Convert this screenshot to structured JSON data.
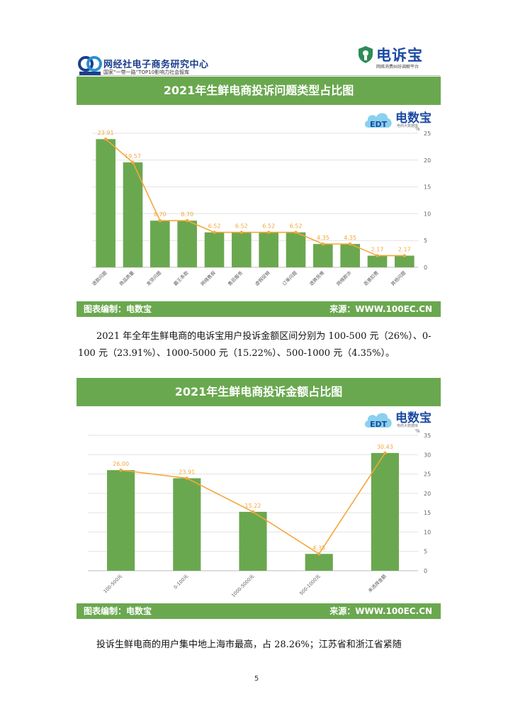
{
  "header": {
    "left_logo_text": "网经社电子商务研究中心",
    "left_logo_sub": "国家“一带一路”TOP10影响力社会智库",
    "left_logo_abbr": "EC",
    "left_logo_abbr_sub": "EORIC",
    "right_logo_text": "电诉宝",
    "right_logo_sub": "网络消费纠纷调解平台"
  },
  "watermark": {
    "text": "电数宝",
    "sub": "电商大数据库",
    "badge": "EDT"
  },
  "chart1": {
    "title": "2021年生鲜电商投诉问题类型占比图",
    "footer_left": "图表编制：电数宝",
    "footer_right": "来源：WWW.100EC.CN"
  },
  "chart2": {
    "title": "2021年生鲜电商投诉金额占比图",
    "footer_left": "图表编制：电数宝",
    "footer_right": "来源：WWW.100EC.CN"
  },
  "paragraph1": "2021 年全年生鲜电商的电诉宝用户投诉金额区间分别为 100-500 元（26%）、0-100 元（23.91%）、1000-5000 元（15.22%）、500-1000 元（4.35%）。",
  "paragraph2": "投诉生鲜电商的用户集中地上海市最高，占 28.26%；江苏省和浙江省紧随",
  "page_number": "5",
  "colors": {
    "green": "#6aa84f",
    "orange": "#f3a73a",
    "blue": "#1c4aa3"
  },
  "chart_data": [
    {
      "type": "bar",
      "categories": [
        "退款问题",
        "商品质量",
        "发货问题",
        "霸王条款",
        "网络售假",
        "售后服务",
        "虚假促销",
        "订单问题",
        "退换货难",
        "网络欺诈",
        "恶意扣费",
        "其他问题"
      ],
      "values": [
        23.91,
        19.57,
        8.7,
        8.7,
        6.52,
        6.52,
        6.52,
        6.52,
        4.35,
        4.35,
        2.17,
        2.17
      ],
      "data_labels": [
        "23.91",
        "19.57",
        "8.70",
        "8.70",
        "6.52",
        "6.52",
        "6.52",
        "6.52",
        "4.35",
        "4.35",
        "2.17",
        "2.17"
      ],
      "line_overlay": true,
      "ylim": [
        0,
        25
      ],
      "yticks": [
        0,
        5,
        10,
        15,
        20,
        25
      ],
      "ylabel": "%",
      "grid": true
    },
    {
      "type": "bar",
      "categories": [
        "100-500元",
        "0-100元",
        "1000-5000元",
        "500-1000元",
        "未选择金额"
      ],
      "values": [
        26.0,
        23.91,
        15.22,
        4.35,
        30.43
      ],
      "data_labels": [
        "26.00",
        "23.91",
        "15.22",
        "4.35",
        "30.43"
      ],
      "line_overlay": true,
      "ylim": [
        0,
        35
      ],
      "yticks": [
        0,
        5,
        10,
        15,
        20,
        25,
        30,
        35
      ],
      "ylabel": "%",
      "grid": true
    }
  ]
}
